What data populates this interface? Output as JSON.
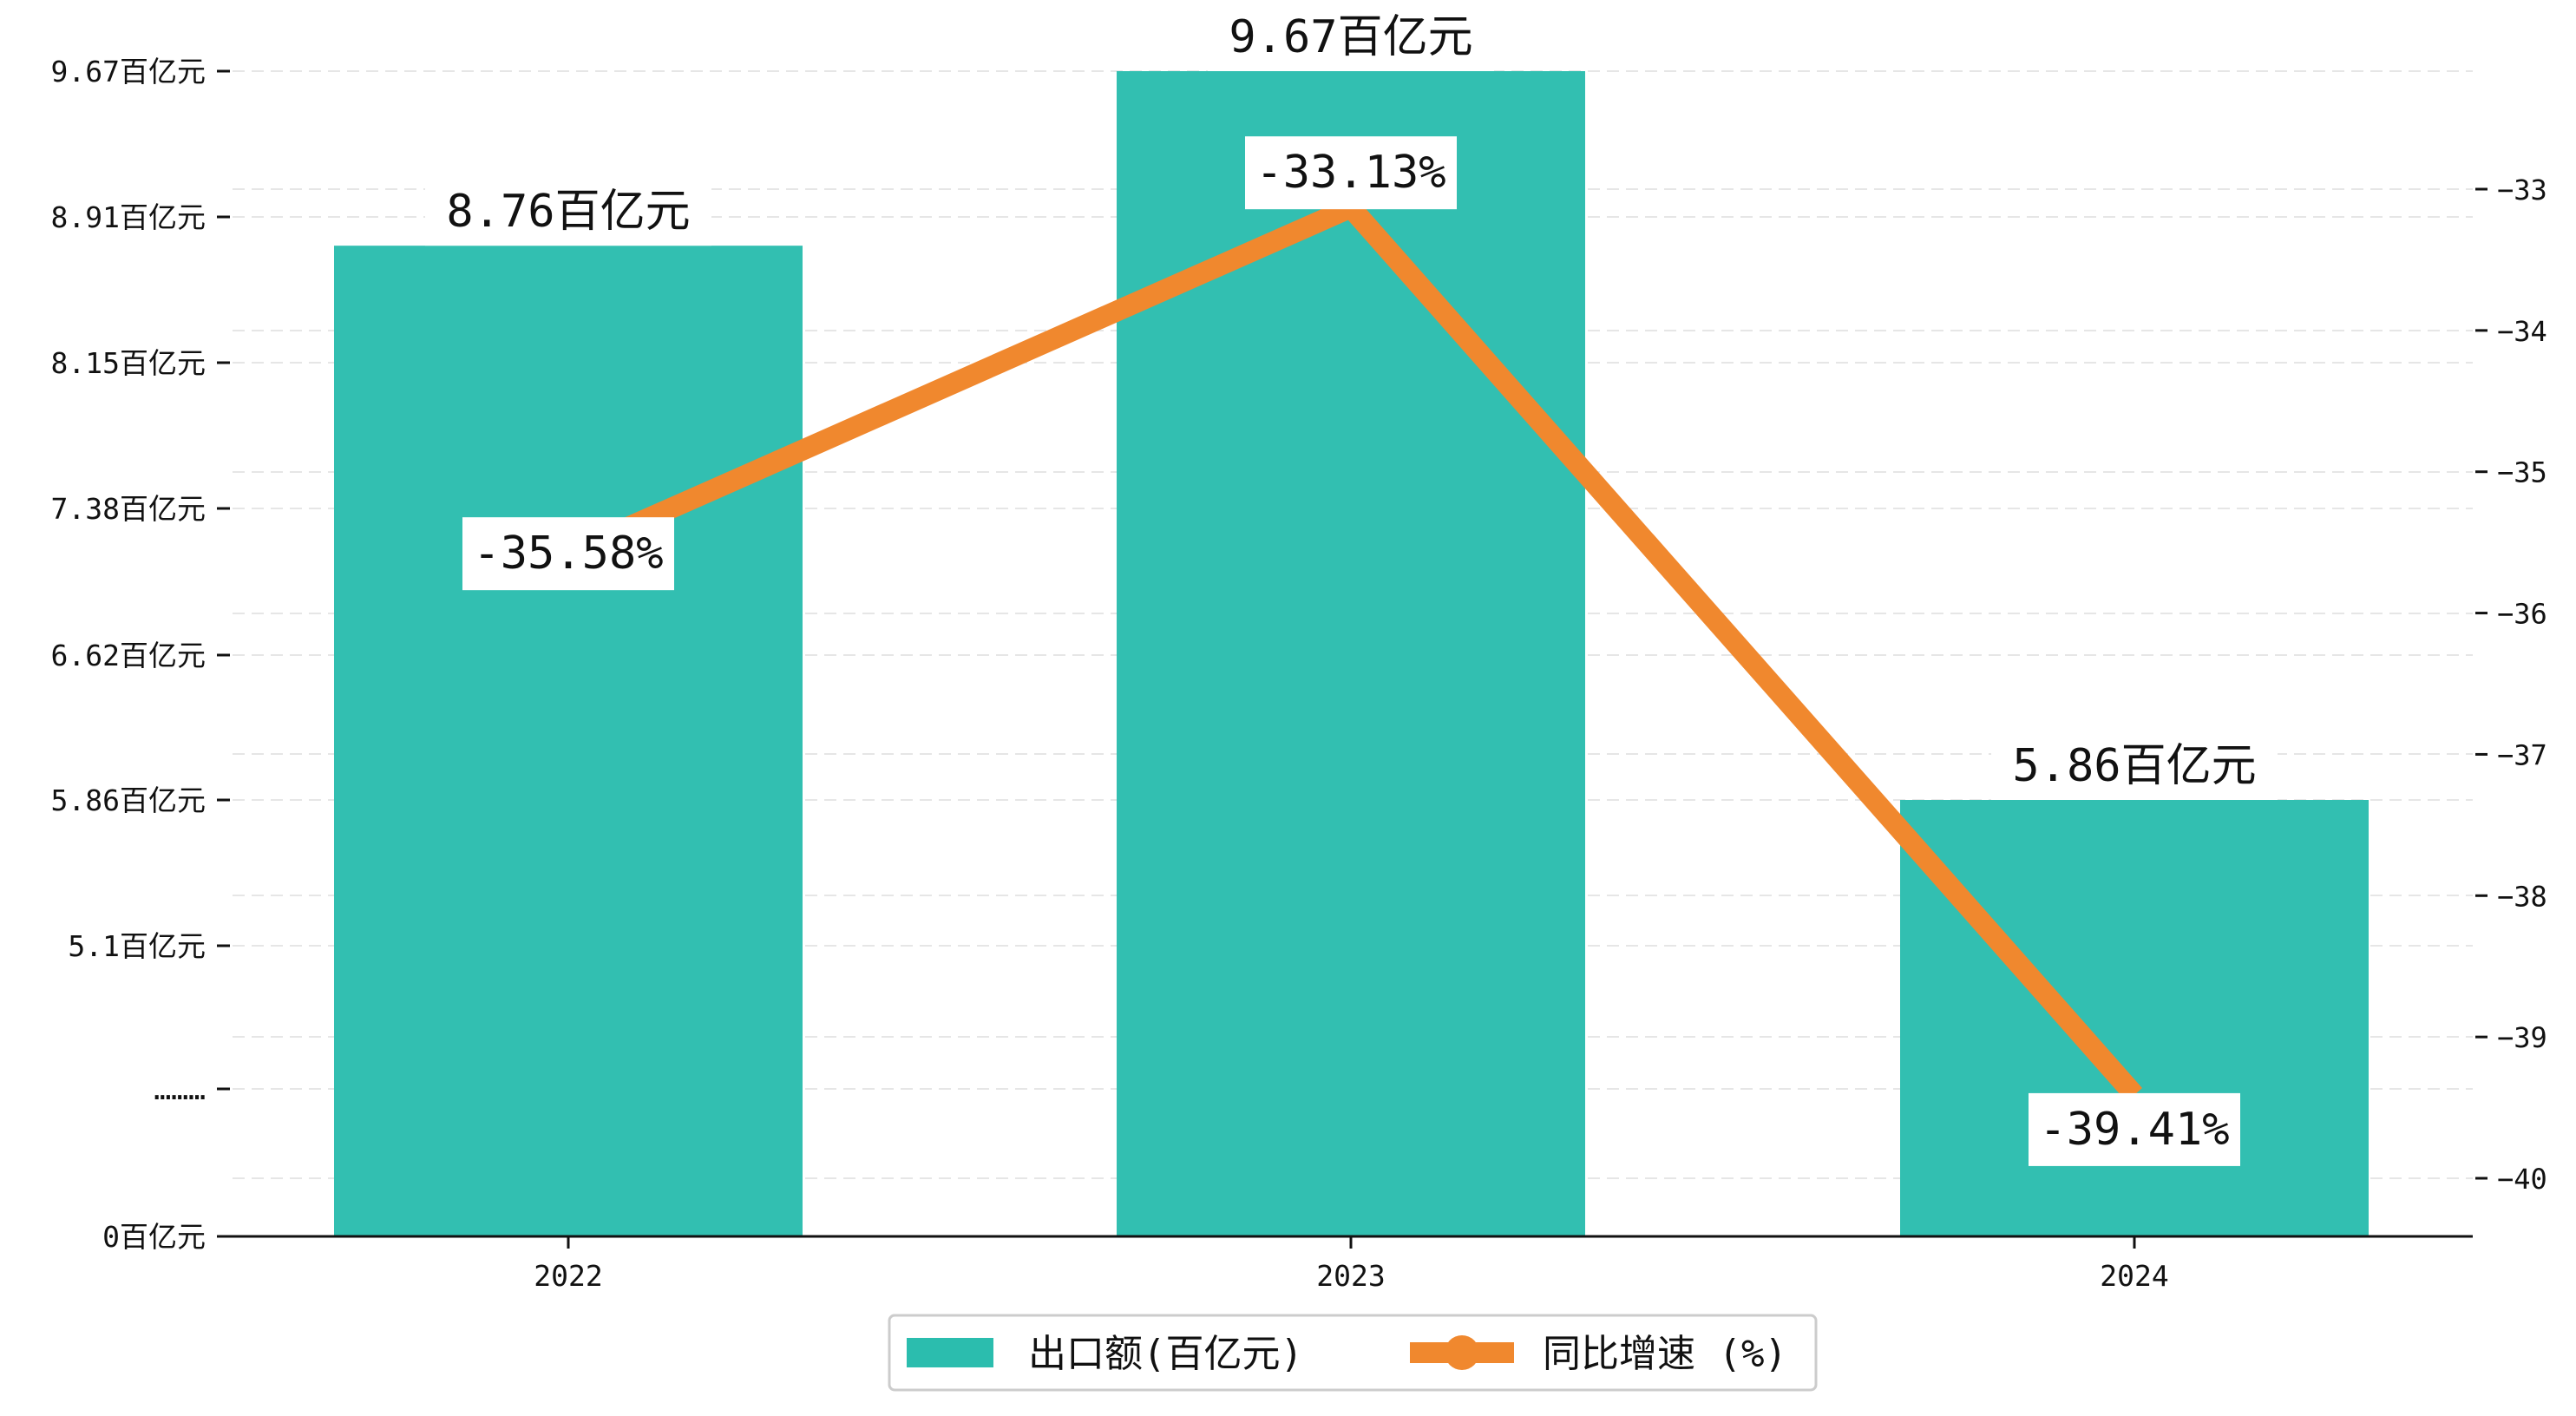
{
  "chart_data": {
    "type": "bar+line",
    "categories": [
      "2022",
      "2023",
      "2024"
    ],
    "series": [
      {
        "name": "出口额(百亿元)",
        "type": "bar",
        "axis": "left",
        "values": [
          8.76,
          9.67,
          5.86
        ],
        "data_labels": [
          "8.76百亿元",
          "9.67百亿元",
          "5.86百亿元"
        ],
        "color": "#2bbdae"
      },
      {
        "name": "同比增速 (%)",
        "type": "line",
        "axis": "right",
        "values": [
          -35.58,
          -33.13,
          -39.41
        ],
        "data_labels": [
          "-35.58%",
          "-33.13%",
          "-39.41%"
        ],
        "color": "#f0882e"
      }
    ],
    "left_axis": {
      "tick_labels": [
        "0百亿元",
        "………",
        "5.1百亿元",
        "5.86百亿元",
        "6.62百亿元",
        "7.38百亿元",
        "8.15百亿元",
        "8.91百亿元",
        "9.67百亿元"
      ],
      "broken": true,
      "ticks": [
        0,
        4.34,
        5.1,
        5.86,
        6.62,
        7.38,
        8.15,
        8.91,
        9.67
      ]
    },
    "right_axis": {
      "tick_labels": [
        "−33",
        "−34",
        "−35",
        "−36",
        "−37",
        "−38",
        "−39",
        "−40"
      ],
      "ticks": [
        -33,
        -34,
        -35,
        -36,
        -37,
        -38,
        -39,
        -40
      ],
      "ylim": [
        -40.4,
        -32.2
      ]
    },
    "grid": true,
    "legend_position": "bottom-center"
  }
}
